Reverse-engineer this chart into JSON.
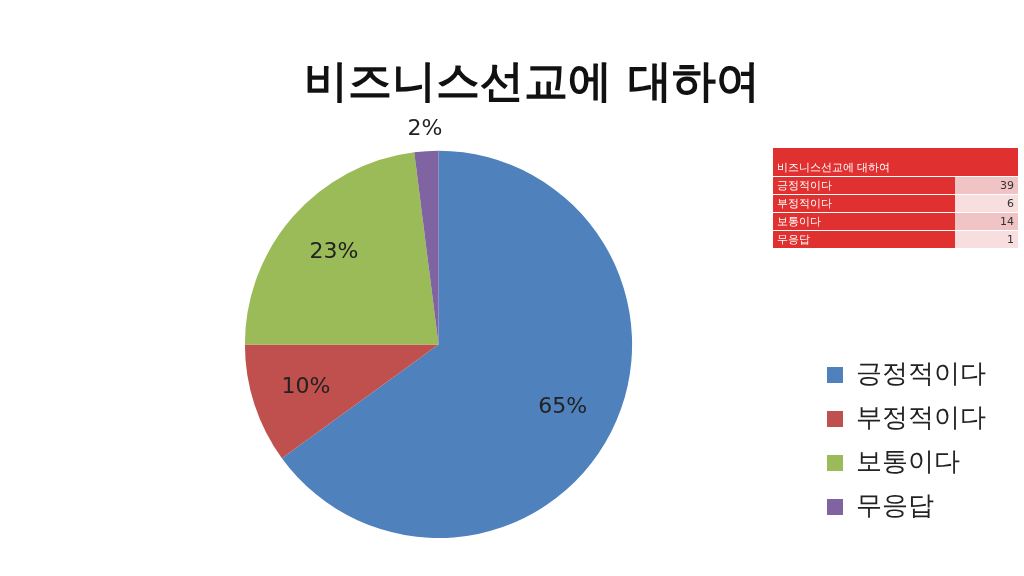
{
  "chart_data": {
    "type": "pie",
    "title": "비즈니스선교에 대하여",
    "categories": [
      "긍정적이다",
      "부정적이다",
      "보통이다",
      "무응답"
    ],
    "values": [
      65,
      10,
      23,
      2
    ],
    "value_labels": [
      "65%",
      "10%",
      "23%",
      "2%"
    ],
    "colors": [
      "#4f81bd",
      "#c0504d",
      "#9bbb59",
      "#8064a2"
    ],
    "annotations": [
      "39",
      "6",
      "14",
      "1"
    ],
    "legend": "right"
  }
}
